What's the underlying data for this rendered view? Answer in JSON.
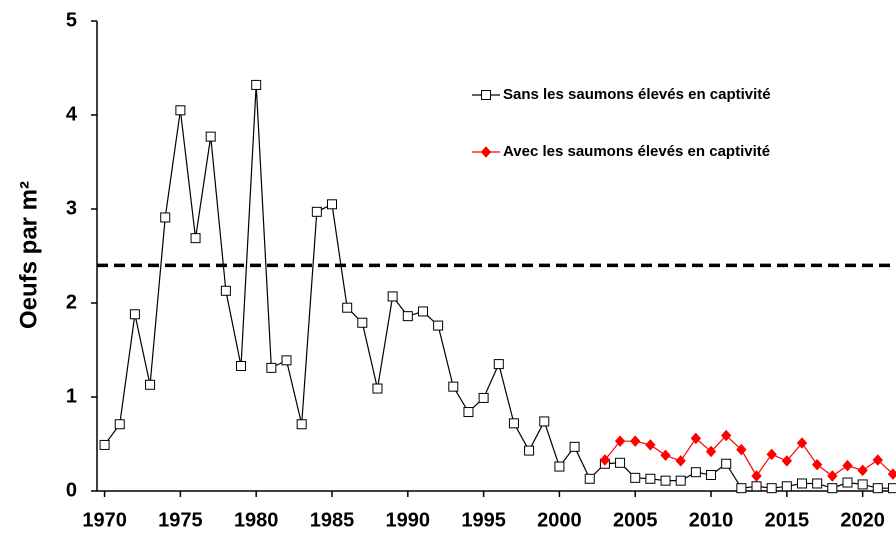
{
  "chart_data": {
    "type": "line",
    "y_label": "Oeufs par m²",
    "x": [
      1970,
      1971,
      1972,
      1973,
      1974,
      1975,
      1976,
      1977,
      1978,
      1979,
      1980,
      1981,
      1982,
      1983,
      1984,
      1985,
      1986,
      1987,
      1988,
      1989,
      1990,
      1991,
      1992,
      1993,
      1994,
      1995,
      1996,
      1997,
      1998,
      1999,
      2000,
      2001,
      2002,
      2003,
      2004,
      2005,
      2006,
      2007,
      2008,
      2009,
      2010,
      2011,
      2012,
      2013,
      2014,
      2015,
      2016,
      2017,
      2018,
      2019,
      2020,
      2021,
      2022
    ],
    "series": [
      {
        "name": "Sans les saumons élevés en captivité",
        "color": "#000000",
        "marker": "square",
        "values": [
          0.49,
          0.71,
          1.88,
          1.13,
          2.91,
          4.05,
          2.69,
          3.77,
          2.13,
          1.33,
          4.32,
          1.31,
          1.39,
          0.71,
          2.97,
          3.05,
          1.95,
          1.79,
          1.09,
          2.07,
          1.86,
          1.91,
          1.76,
          1.11,
          0.84,
          0.99,
          1.35,
          0.72,
          0.43,
          0.74,
          0.26,
          0.47,
          0.13,
          0.29,
          0.3,
          0.14,
          0.13,
          0.11,
          0.11,
          0.2,
          0.17,
          0.29,
          0.03,
          0.05,
          0.03,
          0.05,
          0.08,
          0.08,
          0.03,
          0.09,
          0.07,
          0.03,
          0.03
        ]
      },
      {
        "name": "Avec les saumons élevés en captivité",
        "color": "#ff0000",
        "marker": "diamond",
        "values": [
          null,
          null,
          null,
          null,
          null,
          null,
          null,
          null,
          null,
          null,
          null,
          null,
          null,
          null,
          null,
          null,
          null,
          null,
          null,
          null,
          null,
          null,
          null,
          null,
          null,
          null,
          null,
          null,
          null,
          null,
          null,
          null,
          null,
          0.33,
          0.53,
          0.53,
          0.49,
          0.38,
          0.32,
          0.56,
          0.42,
          0.59,
          0.44,
          0.16,
          0.39,
          0.32,
          0.51,
          0.28,
          0.16,
          0.27,
          0.22,
          0.33,
          0.18
        ]
      }
    ],
    "reference_line": {
      "value": 2.4,
      "color": "#000000",
      "style": "dashed"
    },
    "xlim": [
      1969.5,
      2022.2
    ],
    "xticks": [
      1970,
      1975,
      1980,
      1985,
      1990,
      1995,
      2000,
      2005,
      2010,
      2015,
      2020
    ],
    "ylim": [
      0,
      5
    ],
    "yticks": [
      0,
      1,
      2,
      3,
      4,
      5
    ],
    "grid": false,
    "legend": "upper right"
  }
}
